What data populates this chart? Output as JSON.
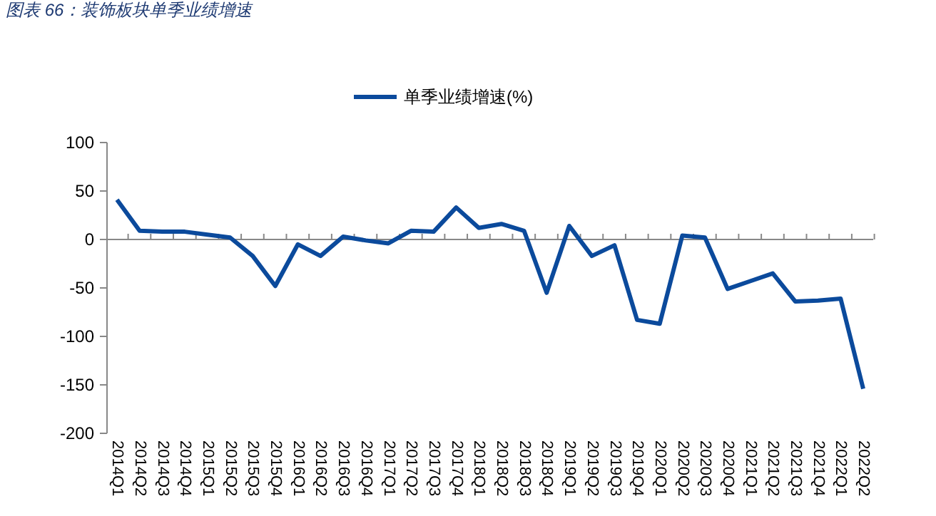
{
  "chart_data": {
    "type": "line",
    "title": "图表 66：装饰板块单季业绩增速",
    "categories": [
      "2014Q1",
      "2014Q2",
      "2014Q3",
      "2014Q4",
      "2015Q1",
      "2015Q2",
      "2015Q3",
      "2015Q4",
      "2016Q1",
      "2016Q2",
      "2016Q3",
      "2016Q4",
      "2017Q1",
      "2017Q2",
      "2017Q3",
      "2017Q4",
      "2018Q1",
      "2018Q2",
      "2018Q3",
      "2018Q4",
      "2019Q1",
      "2019Q2",
      "2019Q3",
      "2019Q4",
      "2020Q1",
      "2020Q2",
      "2020Q3",
      "2020Q4",
      "2021Q1",
      "2021Q2",
      "2021Q3",
      "2021Q4",
      "2022Q1",
      "2022Q2"
    ],
    "series": [
      {
        "name": "单季业绩增速(%)",
        "color": "#0b4a9c",
        "values": [
          41,
          9,
          8,
          8,
          5,
          2,
          -17,
          -48,
          -5,
          -17,
          3,
          -1,
          -4,
          9,
          8,
          33,
          12,
          16,
          9,
          -55,
          14,
          -17,
          -6,
          -83,
          -87,
          4,
          2,
          -51,
          -43,
          -35,
          -64,
          -63,
          -61,
          -154
        ]
      }
    ],
    "ylim": [
      -200,
      100
    ],
    "yticks": [
      -200,
      -150,
      -100,
      -50,
      0,
      50,
      100
    ],
    "legend": "top",
    "marker": "none",
    "line_style": "solid"
  }
}
